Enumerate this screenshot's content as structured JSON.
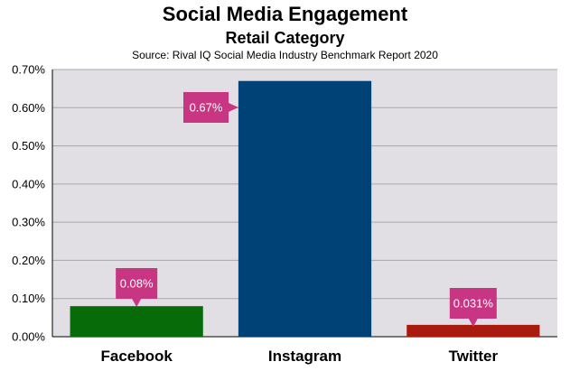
{
  "chart_data": {
    "type": "bar",
    "title": "Social Media Engagement",
    "subtitle": "Retail Category",
    "source": "Source: Rival IQ Social Media Industry Benchmark Report 2020",
    "categories": [
      "Facebook",
      "Instagram",
      "Twitter"
    ],
    "values": [
      0.08,
      0.67,
      0.031
    ],
    "data_labels": [
      "0.08%",
      "0.67%",
      "0.031%"
    ],
    "bar_colors": [
      "#086B0A",
      "#004276",
      "#A91A0F"
    ],
    "label_color": "#C83582",
    "plot_background": "#E1DFE4",
    "ylim": [
      0,
      0.7
    ],
    "yticks": [
      0,
      0.1,
      0.2,
      0.3,
      0.4,
      0.5,
      0.6,
      0.7
    ],
    "ytick_labels": [
      "0.00%",
      "0.10%",
      "0.20%",
      "0.30%",
      "0.40%",
      "0.50%",
      "0.60%",
      "0.70%"
    ],
    "grid": true,
    "xlabel": "",
    "ylabel": ""
  }
}
